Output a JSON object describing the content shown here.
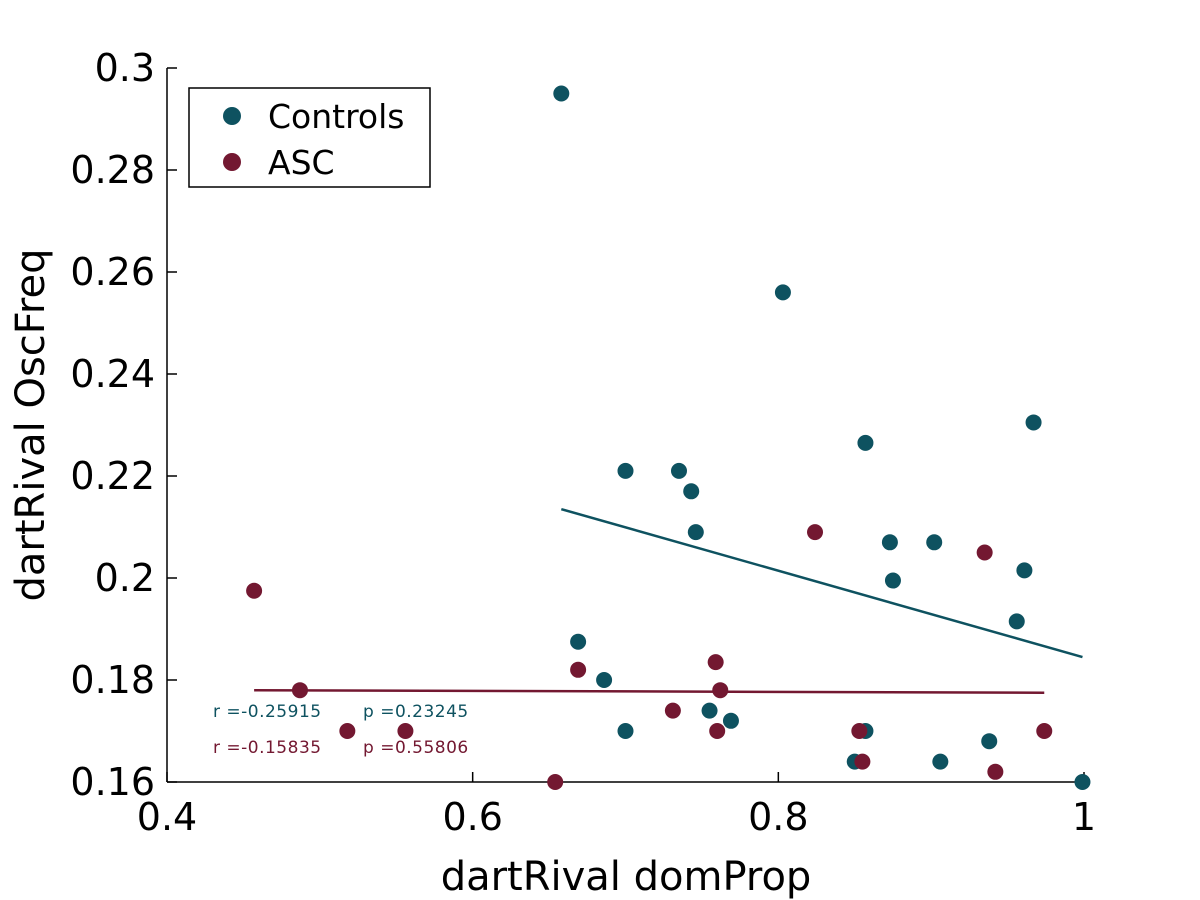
{
  "chart_data": {
    "type": "scatter",
    "title": "",
    "xlabel": "dartRival domProp",
    "ylabel": "dartRival OscFreq",
    "xlim": [
      0.4,
      1.0
    ],
    "ylim": [
      0.16,
      0.3
    ],
    "xticks": [
      0.4,
      0.6,
      0.8,
      1.0
    ],
    "xtick_labels": [
      "0.4",
      "0.6",
      "0.8",
      "1"
    ],
    "yticks": [
      0.16,
      0.18,
      0.2,
      0.22,
      0.24,
      0.26,
      0.28,
      0.3
    ],
    "ytick_labels": [
      "0.16",
      "0.18",
      "0.2",
      "0.22",
      "0.24",
      "0.26",
      "0.28",
      "0.3"
    ],
    "grid": false,
    "box": false,
    "legend": {
      "position": "top-left"
    },
    "series": [
      {
        "name": "Controls",
        "color": "#0e5260",
        "points": [
          {
            "x": 0.658,
            "y": 0.295
          },
          {
            "x": 0.803,
            "y": 0.256
          },
          {
            "x": 0.967,
            "y": 0.2305
          },
          {
            "x": 0.857,
            "y": 0.2265
          },
          {
            "x": 0.7,
            "y": 0.221
          },
          {
            "x": 0.735,
            "y": 0.221
          },
          {
            "x": 0.743,
            "y": 0.217
          },
          {
            "x": 0.746,
            "y": 0.209
          },
          {
            "x": 0.873,
            "y": 0.207
          },
          {
            "x": 0.902,
            "y": 0.207
          },
          {
            "x": 0.961,
            "y": 0.2015
          },
          {
            "x": 0.875,
            "y": 0.1995
          },
          {
            "x": 0.956,
            "y": 0.1915
          },
          {
            "x": 0.669,
            "y": 0.1875
          },
          {
            "x": 0.686,
            "y": 0.18
          },
          {
            "x": 0.7,
            "y": 0.17
          },
          {
            "x": 0.755,
            "y": 0.174
          },
          {
            "x": 0.769,
            "y": 0.172
          },
          {
            "x": 0.857,
            "y": 0.17
          },
          {
            "x": 0.85,
            "y": 0.164
          },
          {
            "x": 0.906,
            "y": 0.164
          },
          {
            "x": 0.938,
            "y": 0.168
          },
          {
            "x": 0.999,
            "y": 0.16
          }
        ],
        "fit": {
          "x": [
            0.658,
            0.999
          ],
          "y": [
            0.2135,
            0.1845
          ]
        },
        "stats": {
          "r": "r =-0.25915",
          "p": "p =0.23245"
        }
      },
      {
        "name": "ASC",
        "color": "#731831",
        "points": [
          {
            "x": 0.457,
            "y": 0.1975
          },
          {
            "x": 0.487,
            "y": 0.178
          },
          {
            "x": 0.518,
            "y": 0.17
          },
          {
            "x": 0.556,
            "y": 0.17
          },
          {
            "x": 0.654,
            "y": 0.16
          },
          {
            "x": 0.669,
            "y": 0.182
          },
          {
            "x": 0.731,
            "y": 0.174
          },
          {
            "x": 0.759,
            "y": 0.1835
          },
          {
            "x": 0.762,
            "y": 0.178
          },
          {
            "x": 0.76,
            "y": 0.17
          },
          {
            "x": 0.824,
            "y": 0.209
          },
          {
            "x": 0.853,
            "y": 0.17
          },
          {
            "x": 0.855,
            "y": 0.164
          },
          {
            "x": 0.935,
            "y": 0.205
          },
          {
            "x": 0.942,
            "y": 0.162
          },
          {
            "x": 0.974,
            "y": 0.17
          }
        ],
        "fit": {
          "x": [
            0.457,
            0.974
          ],
          "y": [
            0.178,
            0.1775
          ]
        },
        "stats": {
          "r": "r =-0.15835",
          "p": "p =0.55806"
        }
      }
    ]
  }
}
